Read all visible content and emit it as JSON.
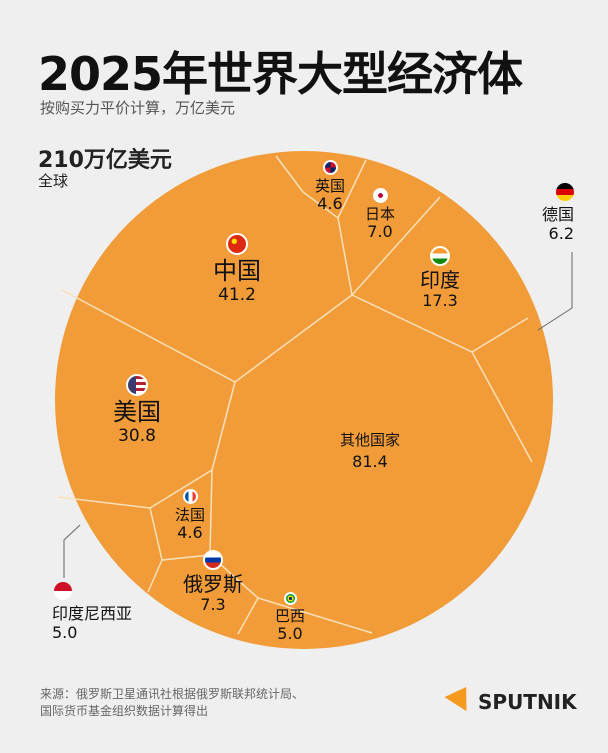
{
  "title": "2025年世界大型经济体",
  "subtitle": "按购买力平价计算，万亿美元",
  "total": {
    "value": "210万亿美元",
    "label": "全球"
  },
  "chart_data": {
    "type": "voronoi-treemap",
    "unit": "万亿美元",
    "items": [
      {
        "name": "其他国家",
        "value": "81.4",
        "flag": ""
      },
      {
        "name": "中国",
        "value": "41.2",
        "flag": "china-flag"
      },
      {
        "name": "美国",
        "value": "30.8",
        "flag": "usa-flag"
      },
      {
        "name": "印度",
        "value": "17.3",
        "flag": "india-flag"
      },
      {
        "name": "俄罗斯",
        "value": "7.3",
        "flag": "russia-flag"
      },
      {
        "name": "日本",
        "value": "7.0",
        "flag": "japan-flag"
      },
      {
        "name": "德国",
        "value": "6.2",
        "flag": "germany-flag"
      },
      {
        "name": "印度尼西亚",
        "value": "5.0",
        "flag": "indonesia-flag"
      },
      {
        "name": "巴西",
        "value": "5.0",
        "flag": "brazil-flag"
      },
      {
        "name": "英国",
        "value": "4.6",
        "flag": "uk-flag"
      },
      {
        "name": "法国",
        "value": "4.6",
        "flag": "france-flag"
      }
    ],
    "colors": {
      "fill": "#f19c38",
      "border": "#fbe0b8",
      "background": "#efefef"
    }
  },
  "source": [
    "来源：俄罗斯卫星通讯社根据俄罗斯联邦统计局、",
    "国际货币基金组织数据计算得出"
  ],
  "logo": "SPUTNIK"
}
